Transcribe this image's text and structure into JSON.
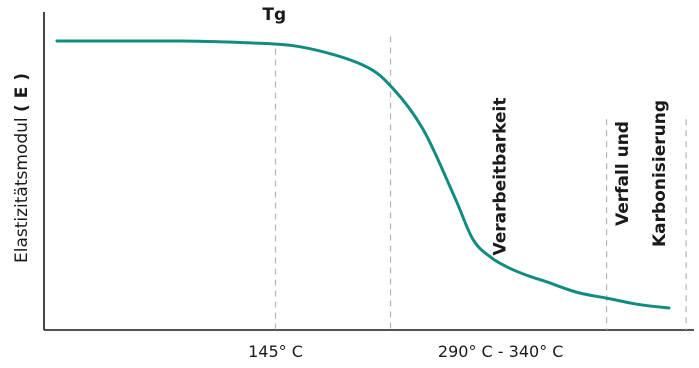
{
  "chart_data": {
    "type": "line",
    "title": "",
    "xlabel": "",
    "ylabel": "Elastizitätsmodul",
    "ylabel_bold": "( E )",
    "grid": false,
    "legend": "none",
    "colors": {
      "curve": "#138c80",
      "axis": "#1a1a1a",
      "guide": "#b5b5b5",
      "text": "#1a1a1a"
    },
    "xlim": [
      0,
      100
    ],
    "ylim": [
      0,
      100
    ],
    "series": [
      {
        "x": [
          0,
          10,
          20,
          30,
          40,
          50,
          55,
          60,
          65,
          68,
          71,
          74,
          77,
          80,
          85,
          90,
          95,
          100
        ],
        "values": [
          96,
          96,
          96,
          95.5,
          94,
          88,
          80,
          66,
          44,
          30,
          24,
          20.5,
          18,
          16,
          12.5,
          10.5,
          8.5,
          7.3
        ]
      }
    ],
    "tick_labels": [
      {
        "text": "145° C",
        "x": 35.7
      },
      {
        "text": "290° C - 340° C",
        "x": 72.5
      }
    ],
    "guides": [
      {
        "x": 35.7,
        "from_y": 93.5
      },
      {
        "x": 54.5,
        "from_y": 97.5
      },
      {
        "x": 89.8,
        "from_y": 70
      },
      {
        "x": 102.8,
        "from_y": 70
      }
    ],
    "annotations": [
      {
        "text": "Tg",
        "x": 35.5,
        "y": 103,
        "orientation": "horizontal"
      },
      {
        "text": "Verarbeitbarkeit",
        "x": 72.5,
        "y": 51,
        "orientation": "vertical"
      },
      {
        "text": "Verfall und",
        "x": 92.5,
        "y": 52,
        "orientation": "vertical"
      },
      {
        "text": "Karbonisierung",
        "x": 98.5,
        "y": 52,
        "orientation": "vertical"
      }
    ]
  }
}
